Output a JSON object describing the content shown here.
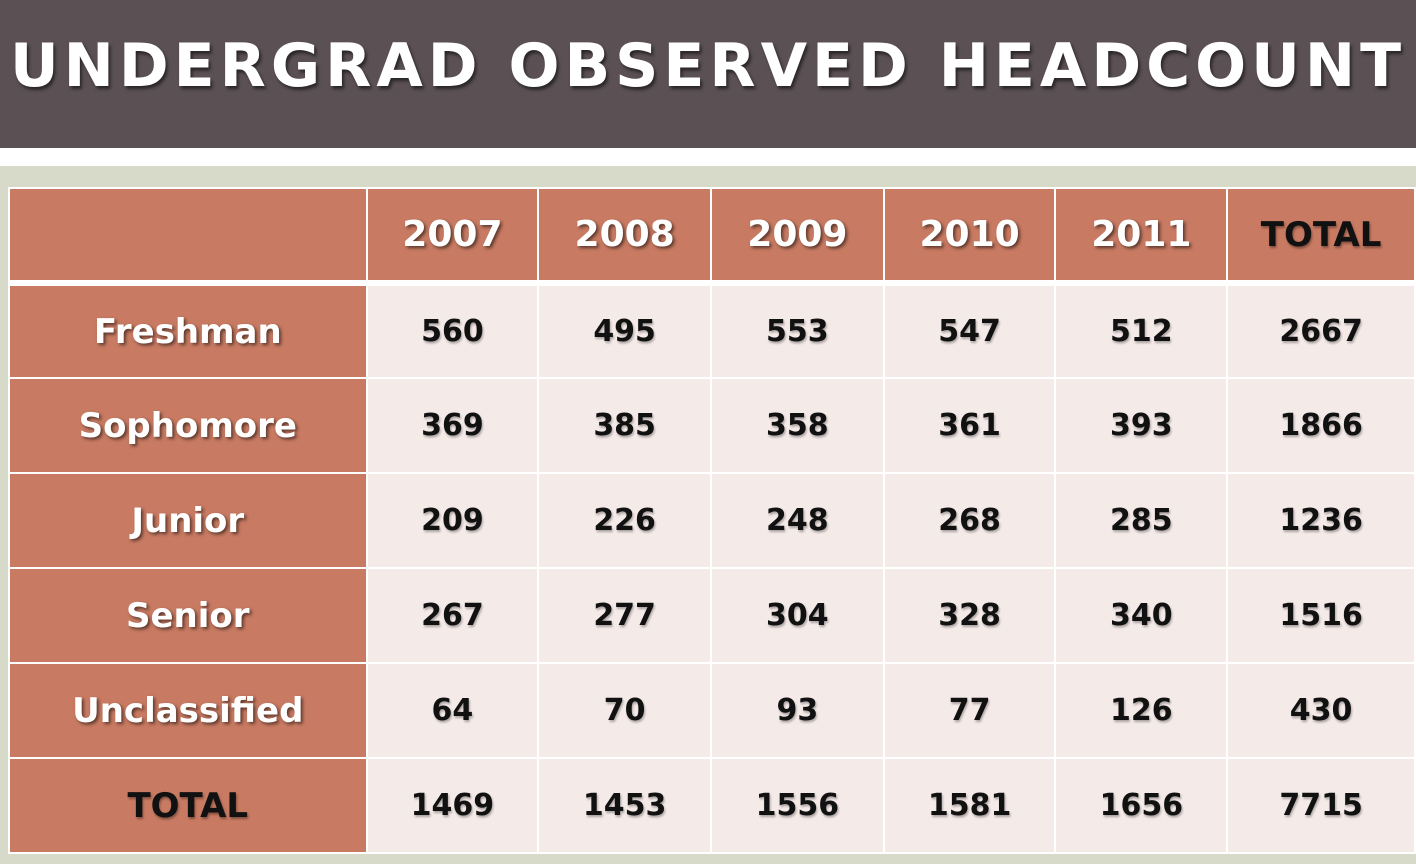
{
  "title": "UNDERGRAD OBSERVED HEADCOUNT",
  "table": {
    "corner": "",
    "columns": [
      "2007",
      "2008",
      "2009",
      "2010",
      "2011",
      "TOTAL"
    ],
    "rows": [
      {
        "label": "Freshman",
        "values": [
          "560",
          "495",
          "553",
          "547",
          "512",
          "2667"
        ]
      },
      {
        "label": "Sophomore",
        "values": [
          "369",
          "385",
          "358",
          "361",
          "393",
          "1866"
        ]
      },
      {
        "label": "Junior",
        "values": [
          "209",
          "226",
          "248",
          "268",
          "285",
          "1236"
        ]
      },
      {
        "label": "Senior",
        "values": [
          "267",
          "277",
          "304",
          "328",
          "340",
          "1516"
        ]
      },
      {
        "label": "Unclassified",
        "values": [
          "64",
          "70",
          "93",
          "77",
          "126",
          "430"
        ]
      },
      {
        "label": "TOTAL",
        "values": [
          "1469",
          "1453",
          "1556",
          "1581",
          "1656",
          "7715"
        ]
      }
    ]
  },
  "colors": {
    "title_bar": "#5b5155",
    "header_fill": "#c87a62",
    "cell_fill": "#f4eae8",
    "panel": "#d8dac9"
  }
}
